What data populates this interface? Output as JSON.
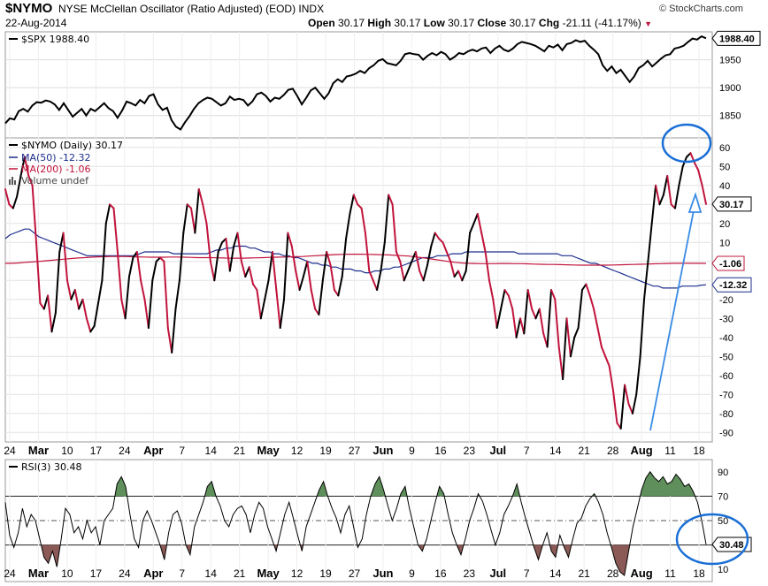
{
  "header": {
    "symbol": "$NYMO",
    "description": "NYSE McClellan Oscillator (Ratio Adjusted) (EOD) INDX",
    "date": "22-Aug-2014",
    "open_label": "Open",
    "open": "30.17",
    "high_label": "High",
    "high": "30.17",
    "low_label": "Low",
    "low": "30.17",
    "close_label": "Close",
    "close": "30.17",
    "chg_label": "Chg",
    "chg": "-21.11 (-41.17%)",
    "watermark": "© StockCharts.com"
  },
  "colors": {
    "price": "#000000",
    "up": "#000000",
    "down": "#c0143c",
    "ma50": "#1c2d8c",
    "ma200": "#c0143c",
    "rsi_overbought_fill": "#5f8f5a",
    "rsi_oversold_fill": "#8c5a56",
    "annotation": "#1a6fd6"
  },
  "legends": {
    "spx": "$SPX 1988.40",
    "nymo": "$NYMO (Daily) 30.17",
    "ma50": "MA(50) -12.32",
    "ma200": "MA(200) -1.06",
    "volume": "Volume undef",
    "rsi": "RSI(3) 30.48"
  },
  "value_tags": {
    "spx": "1988.40",
    "nymo": "30.17",
    "ma200": "-1.06",
    "ma50": "-12.32",
    "rsi": "30.48"
  },
  "x_axis": {
    "labels": [
      "24",
      "Mar",
      "10",
      "17",
      "24",
      "Apr",
      "7",
      "14",
      "21",
      "May",
      "12",
      "19",
      "27",
      "Jun",
      "9",
      "16",
      "23",
      "Jul",
      "7",
      "14",
      "21",
      "28",
      "Aug",
      "11",
      "18"
    ],
    "major": [
      "Mar",
      "Apr",
      "May",
      "Jun",
      "Jul",
      "Aug"
    ]
  },
  "chart_data": [
    {
      "type": "line",
      "name": "$SPX",
      "ylim": [
        1810,
        2000
      ],
      "yticks": [
        "1850",
        "1900",
        "1950"
      ],
      "values": [
        1836,
        1845,
        1843,
        1858,
        1862,
        1857,
        1868,
        1874,
        1873,
        1877,
        1875,
        1870,
        1860,
        1872,
        1860,
        1848,
        1855,
        1862,
        1850,
        1862,
        1858,
        1865,
        1872,
        1863,
        1858,
        1846,
        1859,
        1875,
        1872,
        1868,
        1878,
        1872,
        1885,
        1888,
        1870,
        1860,
        1864,
        1842,
        1830,
        1825,
        1838,
        1849,
        1862,
        1872,
        1878,
        1882,
        1880,
        1874,
        1868,
        1872,
        1884,
        1878,
        1880,
        1878,
        1868,
        1875,
        1888,
        1891,
        1885,
        1875,
        1882,
        1880,
        1887,
        1896,
        1898,
        1885,
        1870,
        1882,
        1895,
        1900,
        1890,
        1880,
        1890,
        1908,
        1915,
        1910,
        1920,
        1922,
        1925,
        1930,
        1926,
        1935,
        1940,
        1948,
        1951,
        1944,
        1942,
        1940,
        1948,
        1960,
        1962,
        1960,
        1959,
        1950,
        1957,
        1962,
        1958,
        1964,
        1960,
        1950,
        1955,
        1962,
        1960,
        1965,
        1968,
        1965,
        1970,
        1972,
        1962,
        1970,
        1975,
        1968,
        1965,
        1970,
        1978,
        1982,
        1980,
        1978,
        1975,
        1970,
        1965,
        1975,
        1972,
        1977,
        1967,
        1978,
        1980,
        1985,
        1982,
        1984,
        1975,
        1968,
        1960,
        1940,
        1930,
        1938,
        1926,
        1932,
        1921,
        1910,
        1920,
        1935,
        1940,
        1948,
        1938,
        1945,
        1952,
        1958,
        1960,
        1970,
        1972,
        1975,
        1982,
        1988,
        1986,
        1992,
        1988.4
      ]
    },
    {
      "type": "line",
      "name": "$NYMO",
      "ylim": [
        -95,
        65
      ],
      "yticks": [
        "60",
        "50",
        "40",
        "30",
        "20",
        "10",
        "0",
        "-10",
        "-20",
        "-30",
        "-40",
        "-50",
        "-60",
        "-70",
        "-80",
        "-90"
      ],
      "values": [
        38,
        30,
        28,
        34,
        45,
        55,
        45,
        40,
        10,
        -22,
        -25,
        -18,
        -37,
        -27,
        5,
        15,
        -10,
        -20,
        -15,
        -25,
        -20,
        -30,
        -37,
        -34,
        -22,
        -10,
        20,
        30,
        28,
        5,
        -20,
        -30,
        -8,
        2,
        5,
        -10,
        -20,
        -35,
        -10,
        0,
        2,
        0,
        -35,
        -48,
        -25,
        -10,
        15,
        30,
        28,
        15,
        38,
        30,
        20,
        0,
        -10,
        5,
        10,
        12,
        -5,
        8,
        15,
        0,
        -8,
        -3,
        -12,
        -15,
        -30,
        -20,
        -10,
        5,
        -15,
        -35,
        -20,
        15,
        8,
        -5,
        -15,
        -8,
        0,
        -15,
        -25,
        -28,
        -10,
        5,
        -2,
        -15,
        -18,
        -8,
        12,
        25,
        35,
        30,
        28,
        15,
        -5,
        -10,
        -15,
        -5,
        10,
        35,
        30,
        5,
        0,
        -10,
        -5,
        0,
        5,
        -5,
        -10,
        -2,
        8,
        15,
        12,
        10,
        5,
        0,
        -8,
        -5,
        -10,
        -5,
        15,
        20,
        25,
        15,
        5,
        -10,
        -20,
        -35,
        -25,
        -15,
        -18,
        -25,
        -40,
        -30,
        -38,
        -15,
        -25,
        -30,
        -25,
        -38,
        -45,
        -15,
        -20,
        -45,
        -62,
        -30,
        -50,
        -40,
        -35,
        -15,
        -12,
        -18,
        -25,
        -35,
        -45,
        -50,
        -55,
        -68,
        -85,
        -88,
        -65,
        -75,
        -80,
        -70,
        -50,
        -20,
        0,
        20,
        40,
        30,
        35,
        45,
        30,
        28,
        40,
        50,
        55,
        57,
        52,
        48,
        40,
        30.17
      ]
    },
    {
      "type": "line",
      "name": "MA(50)",
      "values": [
        12,
        14,
        15,
        16,
        17,
        17,
        15,
        13,
        12,
        11,
        10,
        9,
        8,
        7,
        6,
        5,
        4,
        3,
        3,
        3,
        3,
        3,
        3,
        3,
        3,
        3,
        3,
        3,
        4,
        5,
        5,
        5,
        5,
        5,
        5,
        4,
        4,
        4,
        4,
        4,
        4,
        4,
        4,
        5,
        6,
        6,
        7,
        7,
        8,
        8,
        8,
        7,
        7,
        6,
        5,
        5,
        4,
        4,
        3,
        3,
        2,
        2,
        1,
        0,
        -1,
        -1,
        -2,
        -2,
        -3,
        -3,
        -4,
        -4,
        -4,
        -5,
        -5,
        -6,
        -6,
        -5,
        -5,
        -4,
        -4,
        -3,
        -3,
        -2,
        -1,
        0,
        1,
        2,
        2,
        2,
        3,
        3,
        3,
        4,
        4,
        4,
        5,
        5,
        5,
        5,
        5,
        5,
        5,
        5,
        5,
        5,
        5,
        4,
        4,
        4,
        4,
        4,
        4,
        4,
        4,
        4,
        3,
        3,
        3,
        2,
        1,
        0,
        -1,
        -1,
        -2,
        -3,
        -4,
        -5,
        -6,
        -7,
        -8,
        -9,
        -10,
        -11,
        -12,
        -13,
        -13,
        -14,
        -14,
        -14,
        -14,
        -13,
        -13,
        -13,
        -13,
        -12.5,
        -12.32
      ]
    },
    {
      "type": "line",
      "name": "MA(200)",
      "values": [
        -1,
        -1,
        -0.8,
        -0.5,
        -0.3,
        0,
        0.3,
        0.6,
        0.9,
        1.2,
        1.5,
        1.8,
        2,
        2.2,
        2.4,
        2.5,
        2.6,
        2.6,
        2.6,
        2.5,
        2.4,
        2.3,
        2.2,
        2.2,
        2.2,
        2.3,
        2.3,
        2.2,
        2.1,
        2,
        2,
        2,
        1.9,
        1.8,
        1.7,
        1.7,
        1.7,
        1.8,
        1.9,
        2,
        2.1,
        2.2,
        2.3,
        2.4,
        2.5,
        2.6,
        2.8,
        3,
        3.2,
        3.4,
        3.6,
        3.7,
        3.8,
        3.8,
        3.8,
        3.7,
        3.6,
        3.5,
        3.4,
        3.2,
        3,
        2.8,
        2.4,
        2,
        1.5,
        1,
        0.5,
        0,
        -0.5,
        -0.8,
        -1,
        -1.1,
        -1.2,
        -1.2,
        -1.2,
        -1.1,
        -1.1,
        -1.2,
        -1.2,
        -1.3,
        -1.4,
        -1.5,
        -1.6,
        -1.6,
        -1.7,
        -1.8,
        -1.9,
        -2,
        -2,
        -2,
        -2,
        -2,
        -1.9,
        -1.8,
        -1.7,
        -1.6,
        -1.5,
        -1.4,
        -1.3,
        -1.2,
        -1.1,
        -1,
        -1,
        -1,
        -1,
        -1,
        -1.06
      ]
    },
    {
      "type": "line",
      "name": "RSI(3)",
      "ylim": [
        0,
        100
      ],
      "yticks": [
        "90",
        "70",
        "50",
        "30",
        "10"
      ],
      "overbought": 70,
      "oversold": 30,
      "midline": 50,
      "values": [
        65,
        38,
        28,
        40,
        60,
        45,
        55,
        50,
        35,
        20,
        15,
        25,
        12,
        35,
        60,
        55,
        40,
        45,
        35,
        50,
        40,
        45,
        30,
        50,
        55,
        60,
        80,
        86,
        78,
        55,
        35,
        28,
        50,
        58,
        50,
        40,
        30,
        18,
        40,
        55,
        58,
        48,
        30,
        22,
        45,
        55,
        65,
        78,
        82,
        70,
        62,
        50,
        45,
        55,
        60,
        62,
        55,
        40,
        55,
        65,
        60,
        45,
        35,
        25,
        40,
        55,
        65,
        52,
        38,
        25,
        45,
        55,
        65,
        75,
        82,
        70,
        60,
        52,
        40,
        55,
        62,
        45,
        28,
        35,
        55,
        70,
        80,
        86,
        75,
        62,
        50,
        60,
        72,
        78,
        60,
        45,
        30,
        25,
        35,
        50,
        65,
        78,
        72,
        55,
        40,
        30,
        22,
        35,
        50,
        60,
        72,
        66,
        55,
        42,
        30,
        40,
        55,
        62,
        70,
        80,
        65,
        52,
        40,
        28,
        18,
        30,
        40,
        25,
        20,
        38,
        28,
        20,
        35,
        48,
        52,
        62,
        68,
        72,
        65,
        55,
        40,
        28,
        15,
        8,
        5,
        25,
        45,
        60,
        75,
        85,
        90,
        85,
        82,
        86,
        80,
        82,
        88,
        84,
        78,
        80,
        74,
        65,
        50,
        30.48
      ]
    }
  ]
}
